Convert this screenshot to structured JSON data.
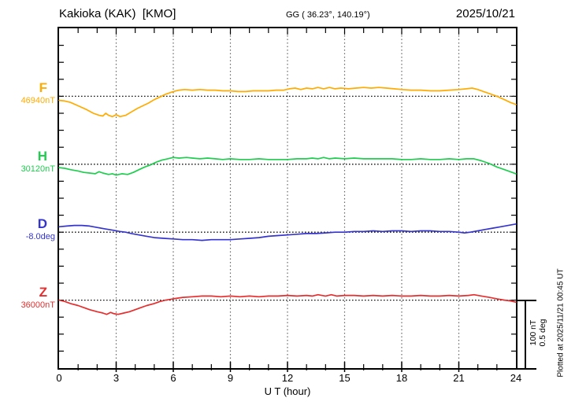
{
  "header": {
    "station": "Kakioka (KAK)  [KMO]",
    "coordinates": "GG ( 36.23°, 140.19°)",
    "date": "2025/10/21"
  },
  "axis": {
    "xlabel": "U T (hour)",
    "x_ticks": [
      0,
      3,
      6,
      9,
      12,
      15,
      18,
      21,
      24
    ]
  },
  "scale_bar": {
    "line1": "100 nT",
    "line2": "0.5 deg"
  },
  "footer": {
    "plotted_at": "Plotted at 2025/11/21 00:45 UT"
  },
  "chart_data": {
    "type": "line",
    "title": "Kakioka (KAK) [KMO] magnetogram 2025/10/21",
    "xlabel": "U T (hour)",
    "x_range": [
      0,
      24
    ],
    "x_ticks": [
      0,
      3,
      6,
      9,
      12,
      15,
      18,
      21,
      24
    ],
    "grid": "dotted vertical gridlines every 3 h; dotted horizontal baseline per channel; minor ticks every 1 h and every 25 nT (0.125 deg)",
    "division_note": "one 4-tick division between baselines = 100 nT for F/H/Z, 0.5 deg for D",
    "series": [
      {
        "name": "F",
        "letter": "F",
        "baseline_label": "46940nT",
        "baseline_value": 46940,
        "unit": "nT",
        "units_per_div": 100,
        "color": "#FFAB00",
        "points": [
          [
            0,
            -6
          ],
          [
            0.3,
            -7
          ],
          [
            0.6,
            -9
          ],
          [
            1,
            -14
          ],
          [
            1.4,
            -19
          ],
          [
            1.8,
            -25
          ],
          [
            2.1,
            -28
          ],
          [
            2.3,
            -29
          ],
          [
            2.45,
            -25
          ],
          [
            2.6,
            -28
          ],
          [
            2.8,
            -30
          ],
          [
            3,
            -27
          ],
          [
            3.2,
            -30
          ],
          [
            3.5,
            -28
          ],
          [
            3.8,
            -23
          ],
          [
            4.1,
            -18
          ],
          [
            4.4,
            -14
          ],
          [
            4.7,
            -10
          ],
          [
            5,
            -5
          ],
          [
            5.3,
            -1
          ],
          [
            5.6,
            3
          ],
          [
            6,
            7
          ],
          [
            6.3,
            9
          ],
          [
            6.6,
            10
          ],
          [
            7,
            9
          ],
          [
            7.4,
            10
          ],
          [
            7.8,
            9
          ],
          [
            8.2,
            9
          ],
          [
            8.6,
            8
          ],
          [
            9,
            8
          ],
          [
            9.4,
            7
          ],
          [
            9.8,
            7
          ],
          [
            10.2,
            8
          ],
          [
            10.6,
            8
          ],
          [
            11,
            8
          ],
          [
            11.4,
            9
          ],
          [
            11.8,
            9
          ],
          [
            12.1,
            11
          ],
          [
            12.4,
            12
          ],
          [
            12.7,
            10
          ],
          [
            13,
            12
          ],
          [
            13.3,
            11
          ],
          [
            13.6,
            13
          ],
          [
            13.9,
            11
          ],
          [
            14.2,
            13
          ],
          [
            14.5,
            11
          ],
          [
            14.8,
            12
          ],
          [
            15.2,
            11
          ],
          [
            15.6,
            12
          ],
          [
            16,
            13
          ],
          [
            16.4,
            12
          ],
          [
            16.8,
            13
          ],
          [
            17.2,
            12
          ],
          [
            17.6,
            11
          ],
          [
            18,
            10
          ],
          [
            18.5,
            9
          ],
          [
            19,
            9
          ],
          [
            19.5,
            8
          ],
          [
            20,
            8
          ],
          [
            20.5,
            9
          ],
          [
            21,
            10
          ],
          [
            21.4,
            11
          ],
          [
            21.7,
            12
          ],
          [
            22,
            10
          ],
          [
            22.3,
            7
          ],
          [
            22.6,
            4
          ],
          [
            23,
            0
          ],
          [
            23.4,
            -5
          ],
          [
            23.7,
            -9
          ],
          [
            24,
            -12
          ]
        ]
      },
      {
        "name": "H",
        "letter": "H",
        "baseline_label": "30120nT",
        "baseline_value": 30120,
        "unit": "nT",
        "units_per_div": 100,
        "color": "#1FCE4F",
        "points": [
          [
            0,
            -5
          ],
          [
            0.3,
            -6
          ],
          [
            0.6,
            -8
          ],
          [
            1,
            -10
          ],
          [
            1.3,
            -12
          ],
          [
            1.6,
            -13
          ],
          [
            1.9,
            -14
          ],
          [
            2.1,
            -11
          ],
          [
            2.3,
            -13
          ],
          [
            2.6,
            -15
          ],
          [
            2.8,
            -14
          ],
          [
            3,
            -16
          ],
          [
            3.3,
            -14
          ],
          [
            3.6,
            -15
          ],
          [
            3.9,
            -12
          ],
          [
            4.2,
            -8
          ],
          [
            4.5,
            -4
          ],
          [
            4.8,
            -1
          ],
          [
            5.1,
            3
          ],
          [
            5.4,
            6
          ],
          [
            5.7,
            8
          ],
          [
            6,
            10
          ],
          [
            6.3,
            9
          ],
          [
            6.7,
            10
          ],
          [
            7,
            9
          ],
          [
            7.4,
            8
          ],
          [
            7.8,
            9
          ],
          [
            8.2,
            8
          ],
          [
            8.6,
            7
          ],
          [
            9,
            8
          ],
          [
            9.5,
            7
          ],
          [
            10,
            7
          ],
          [
            10.5,
            8
          ],
          [
            11,
            7
          ],
          [
            11.5,
            7
          ],
          [
            12,
            7
          ],
          [
            12.5,
            8
          ],
          [
            13,
            8
          ],
          [
            13.3,
            9
          ],
          [
            13.6,
            8
          ],
          [
            13.9,
            10
          ],
          [
            14.2,
            8
          ],
          [
            14.5,
            9
          ],
          [
            15,
            8
          ],
          [
            15.5,
            9
          ],
          [
            16,
            8
          ],
          [
            16.5,
            8
          ],
          [
            17,
            8
          ],
          [
            17.5,
            8
          ],
          [
            18,
            7
          ],
          [
            18.5,
            7
          ],
          [
            19,
            8
          ],
          [
            19.5,
            7
          ],
          [
            20,
            7
          ],
          [
            20.5,
            8
          ],
          [
            21,
            7
          ],
          [
            21.4,
            8
          ],
          [
            21.8,
            8
          ],
          [
            22.2,
            5
          ],
          [
            22.6,
            1
          ],
          [
            23,
            -4
          ],
          [
            23.4,
            -8
          ],
          [
            23.7,
            -11
          ],
          [
            24,
            -14
          ]
        ]
      },
      {
        "name": "D",
        "letter": "D",
        "baseline_label": "-8.0deg",
        "baseline_value": -8.0,
        "unit": "deg",
        "units_per_div": 0.5,
        "color": "#3535CD",
        "points": [
          [
            0,
            0.04
          ],
          [
            0.4,
            0.045
          ],
          [
            0.8,
            0.05
          ],
          [
            1.2,
            0.05
          ],
          [
            1.6,
            0.045
          ],
          [
            2,
            0.035
          ],
          [
            2.4,
            0.025
          ],
          [
            2.8,
            0.015
          ],
          [
            3.2,
            0.005
          ],
          [
            3.5,
            0
          ],
          [
            3.8,
            -0.01
          ],
          [
            4.2,
            -0.02
          ],
          [
            4.6,
            -0.03
          ],
          [
            5,
            -0.04
          ],
          [
            5.5,
            -0.045
          ],
          [
            6,
            -0.05
          ],
          [
            6.5,
            -0.055
          ],
          [
            7,
            -0.055
          ],
          [
            7.5,
            -0.06
          ],
          [
            8,
            -0.055
          ],
          [
            8.5,
            -0.055
          ],
          [
            9,
            -0.055
          ],
          [
            9.5,
            -0.05
          ],
          [
            10,
            -0.045
          ],
          [
            10.5,
            -0.04
          ],
          [
            11,
            -0.03
          ],
          [
            11.5,
            -0.025
          ],
          [
            12,
            -0.02
          ],
          [
            12.5,
            -0.015
          ],
          [
            13,
            -0.01
          ],
          [
            13.5,
            -0.01
          ],
          [
            14,
            -0.005
          ],
          [
            14.5,
            0
          ],
          [
            15,
            0
          ],
          [
            15.5,
            0.005
          ],
          [
            16,
            0.005
          ],
          [
            16.5,
            0.01
          ],
          [
            17,
            0.005
          ],
          [
            17.5,
            0.01
          ],
          [
            18,
            0.01
          ],
          [
            18.5,
            0.005
          ],
          [
            19,
            0.01
          ],
          [
            19.5,
            0.01
          ],
          [
            20,
            0.005
          ],
          [
            20.5,
            0.005
          ],
          [
            21,
            0
          ],
          [
            21.3,
            -0.005
          ],
          [
            21.6,
            0
          ],
          [
            22,
            0.01
          ],
          [
            22.4,
            0.02
          ],
          [
            22.8,
            0.03
          ],
          [
            23.2,
            0.04
          ],
          [
            23.6,
            0.05
          ],
          [
            24,
            0.06
          ]
        ]
      },
      {
        "name": "Z",
        "letter": "Z",
        "baseline_label": "36000nT",
        "baseline_value": 36000,
        "unit": "nT",
        "units_per_div": 100,
        "color": "#E62E2E",
        "points": [
          [
            0,
            0
          ],
          [
            0.3,
            -2
          ],
          [
            0.6,
            -5
          ],
          [
            1,
            -8
          ],
          [
            1.3,
            -11
          ],
          [
            1.6,
            -14
          ],
          [
            2,
            -17
          ],
          [
            2.3,
            -19
          ],
          [
            2.5,
            -21
          ],
          [
            2.7,
            -18
          ],
          [
            2.9,
            -20
          ],
          [
            3.1,
            -21
          ],
          [
            3.4,
            -19
          ],
          [
            3.7,
            -17
          ],
          [
            4,
            -14
          ],
          [
            4.3,
            -11
          ],
          [
            4.6,
            -8
          ],
          [
            5,
            -5
          ],
          [
            5.3,
            -2
          ],
          [
            5.6,
            0
          ],
          [
            6,
            2
          ],
          [
            6.5,
            4
          ],
          [
            7,
            5
          ],
          [
            7.5,
            6
          ],
          [
            8,
            6
          ],
          [
            8.5,
            5
          ],
          [
            9,
            6
          ],
          [
            9.5,
            5
          ],
          [
            10,
            6
          ],
          [
            10.5,
            5
          ],
          [
            11,
            6
          ],
          [
            11.5,
            6
          ],
          [
            12,
            7
          ],
          [
            12.5,
            6
          ],
          [
            13,
            7
          ],
          [
            13.3,
            6
          ],
          [
            13.6,
            8
          ],
          [
            14,
            6
          ],
          [
            14.3,
            8
          ],
          [
            14.6,
            6
          ],
          [
            15,
            7
          ],
          [
            15.5,
            7
          ],
          [
            16,
            6
          ],
          [
            16.5,
            7
          ],
          [
            17,
            6
          ],
          [
            17.5,
            7
          ],
          [
            18,
            6
          ],
          [
            18.5,
            6
          ],
          [
            19,
            7
          ],
          [
            19.5,
            6
          ],
          [
            20,
            6
          ],
          [
            20.5,
            7
          ],
          [
            21,
            6
          ],
          [
            21.5,
            7
          ],
          [
            21.8,
            8
          ],
          [
            22.2,
            6
          ],
          [
            22.6,
            4
          ],
          [
            23,
            2
          ],
          [
            23.4,
            0
          ],
          [
            23.7,
            -1
          ],
          [
            24,
            -3
          ]
        ]
      }
    ]
  }
}
